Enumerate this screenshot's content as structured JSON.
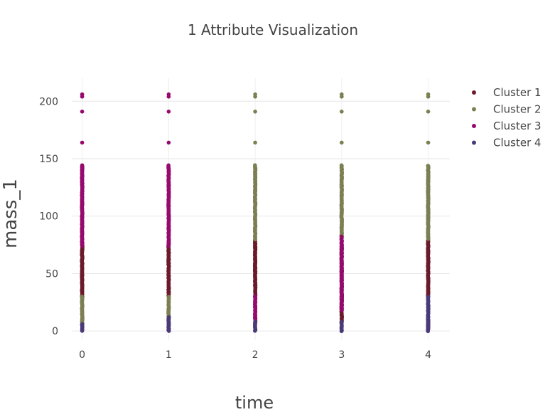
{
  "chart_data": {
    "type": "scatter",
    "title": "1 Attribute Visualization",
    "xlabel": "time",
    "ylabel": "mass_1",
    "xlim": [
      -0.12,
      4.25
    ],
    "ylim": [
      -8,
      220
    ],
    "x_ticks": [
      0,
      1,
      2,
      3,
      4
    ],
    "y_ticks": [
      0,
      50,
      100,
      150,
      200
    ],
    "grid": true,
    "legend_position": "top-right",
    "series": [
      {
        "name": "Cluster 1",
        "color": "#6b1a2b",
        "ranges": [
          {
            "x": 0,
            "min": 30,
            "max": 74
          },
          {
            "x": 1,
            "min": 30,
            "max": 74
          },
          {
            "x": 2,
            "min": 30,
            "max": 79
          },
          {
            "x": 3,
            "min": 8,
            "max": 72
          },
          {
            "x": 4,
            "min": 30,
            "max": 79
          }
        ]
      },
      {
        "name": "Cluster 2",
        "color": "#7c7f52",
        "ranges": [
          {
            "x": 0,
            "min": 6,
            "max": 30
          },
          {
            "x": 1,
            "min": 6,
            "max": 30
          },
          {
            "x": 2,
            "min": 80,
            "max": 144
          },
          {
            "x": 3,
            "min": 82,
            "max": 144
          },
          {
            "x": 4,
            "min": 80,
            "max": 144
          }
        ],
        "extra_points": [
          {
            "x": 2,
            "y": [
              164,
              191,
              204,
              206
            ]
          },
          {
            "x": 3,
            "y": [
              164,
              191,
              204,
              206
            ]
          },
          {
            "x": 4,
            "y": [
              164,
              191,
              204,
              206
            ]
          }
        ]
      },
      {
        "name": "Cluster 3",
        "color": "#960a6e",
        "ranges": [
          {
            "x": 0,
            "min": 74,
            "max": 144
          },
          {
            "x": 1,
            "min": 74,
            "max": 144
          },
          {
            "x": 2,
            "min": 8,
            "max": 30
          },
          {
            "x": 3,
            "min": 18,
            "max": 82
          },
          {
            "x": 4,
            "min": 1,
            "max": 10
          }
        ],
        "extra_points": [
          {
            "x": 0,
            "y": [
              164,
              191,
              204,
              206
            ]
          },
          {
            "x": 1,
            "y": [
              164,
              191,
              204,
              206
            ]
          }
        ]
      },
      {
        "name": "Cluster 4",
        "color": "#4a3a78",
        "ranges": [
          {
            "x": 0,
            "min": 0,
            "max": 6
          },
          {
            "x": 1,
            "min": 0,
            "max": 12
          },
          {
            "x": 2,
            "min": 0,
            "max": 8
          },
          {
            "x": 3,
            "min": 0,
            "max": 8
          },
          {
            "x": 4,
            "min": 0,
            "max": 30
          }
        ]
      }
    ]
  }
}
